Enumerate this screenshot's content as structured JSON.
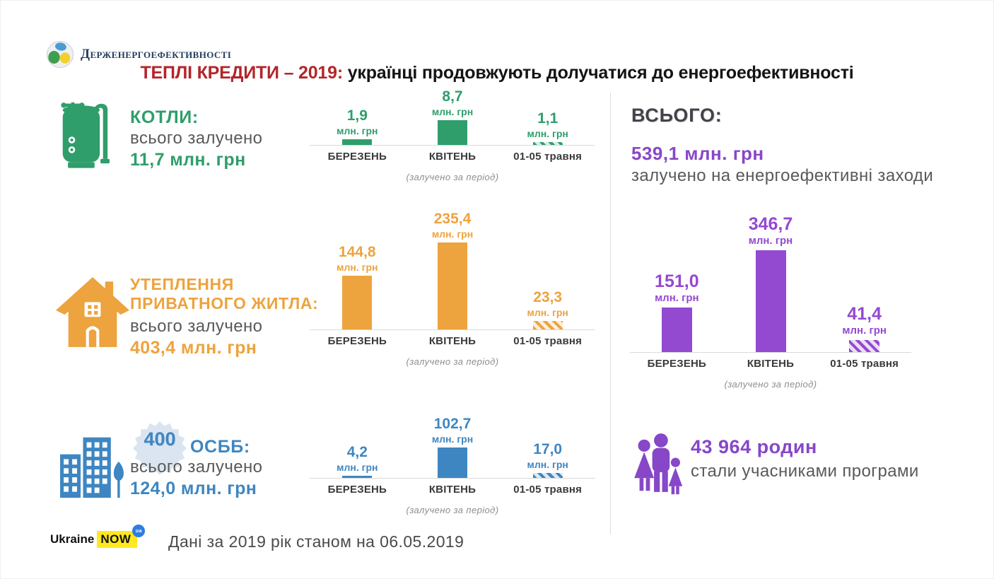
{
  "header": {
    "agency_name": "Держенергоефективності",
    "title_accent": "ТЕПЛІ КРЕДИТИ – 2019:",
    "title_rest": " українці продовжують долучатися до енергоефективності"
  },
  "colors": {
    "boilers_green": "#2f9e6b",
    "insulation_orange": "#eda33e",
    "osbb_blue": "#3e86c2",
    "total_purple": "#9449d1",
    "title_red": "#b2252a",
    "body_gray": "#595959",
    "note_gray": "#8e8e8e"
  },
  "months": [
    "БЕРЕЗЕНЬ",
    "КВІТЕНЬ",
    "01-05 травня"
  ],
  "period_note": "(залучено  за період)",
  "sections": {
    "boilers": {
      "title": "КОТЛИ:",
      "subtitle": "всього залучено",
      "total": "11,7 млн. грн"
    },
    "insulation": {
      "title_line1": "УТЕПЛЕННЯ",
      "title_line2": "ПРИВАТНОГО ЖИТЛА:",
      "subtitle": "всього залучено",
      "total": "403,4 млн. грн"
    },
    "osbb": {
      "badge": "400",
      "title": "ОСББ:",
      "subtitle": "всього залучено",
      "total": "124,0 млн. грн"
    },
    "total": {
      "title": "ВСЬОГО:",
      "amount": "539,1 млн. грн",
      "subtitle": "залучено на енергоефективні заходи"
    },
    "families": {
      "amount": "43 964 родин",
      "subtitle": "стали учасниками програми"
    }
  },
  "footer": {
    "brand_ukraine": "Ukraine",
    "brand_now": "NOW",
    "brand_ua": "ua",
    "note": "Дані за 2019 рік станом на 06.05.2019"
  },
  "chart_data": [
    {
      "type": "bar",
      "title": "КОТЛИ — залучено за період",
      "categories": [
        "БЕРЕЗЕНЬ",
        "КВІТЕНЬ",
        "01-05 травня"
      ],
      "values": [
        1.9,
        8.7,
        1.1
      ],
      "value_labels": [
        "1,9",
        "8,7",
        "1,1"
      ],
      "unit": "млн. грн",
      "color": "#2f9e6b",
      "note": "(залучено  за період)",
      "last_bar_hatched": true,
      "ylim": [
        0,
        8.7
      ],
      "grid": false
    },
    {
      "type": "bar",
      "title": "УТЕПЛЕННЯ ПРИВАТНОГО ЖИТЛА — залучено за період",
      "categories": [
        "БЕРЕЗЕНЬ",
        "КВІТЕНЬ",
        "01-05 травня"
      ],
      "values": [
        144.8,
        235.4,
        23.3
      ],
      "value_labels": [
        "144,8",
        "235,4",
        "23,3"
      ],
      "unit": "млн. грн",
      "color": "#eda33e",
      "note": "(залучено  за період)",
      "last_bar_hatched": true,
      "ylim": [
        0,
        235.4
      ],
      "grid": false
    },
    {
      "type": "bar",
      "title": "ОСББ — залучено за період",
      "categories": [
        "БЕРЕЗЕНЬ",
        "КВІТЕНЬ",
        "01-05 травня"
      ],
      "values": [
        4.2,
        102.7,
        17.0
      ],
      "value_labels": [
        "4,2",
        "102,7",
        "17,0"
      ],
      "unit": "млн. грн",
      "color": "#3e86c2",
      "note": "(залучено  за період)",
      "last_bar_hatched": true,
      "ylim": [
        0,
        102.7
      ],
      "grid": false
    },
    {
      "type": "bar",
      "title": "ВСЬОГО — залучено за період",
      "categories": [
        "БЕРЕЗЕНЬ",
        "КВІТЕНЬ",
        "01-05 травня"
      ],
      "values": [
        151.0,
        346.7,
        41.4
      ],
      "value_labels": [
        "151,0",
        "346,7",
        "41,4"
      ],
      "unit": "млн. грн",
      "color": "#9449d1",
      "note": "(залучено  за період)",
      "last_bar_hatched": true,
      "ylim": [
        0,
        346.7
      ],
      "grid": false
    }
  ]
}
